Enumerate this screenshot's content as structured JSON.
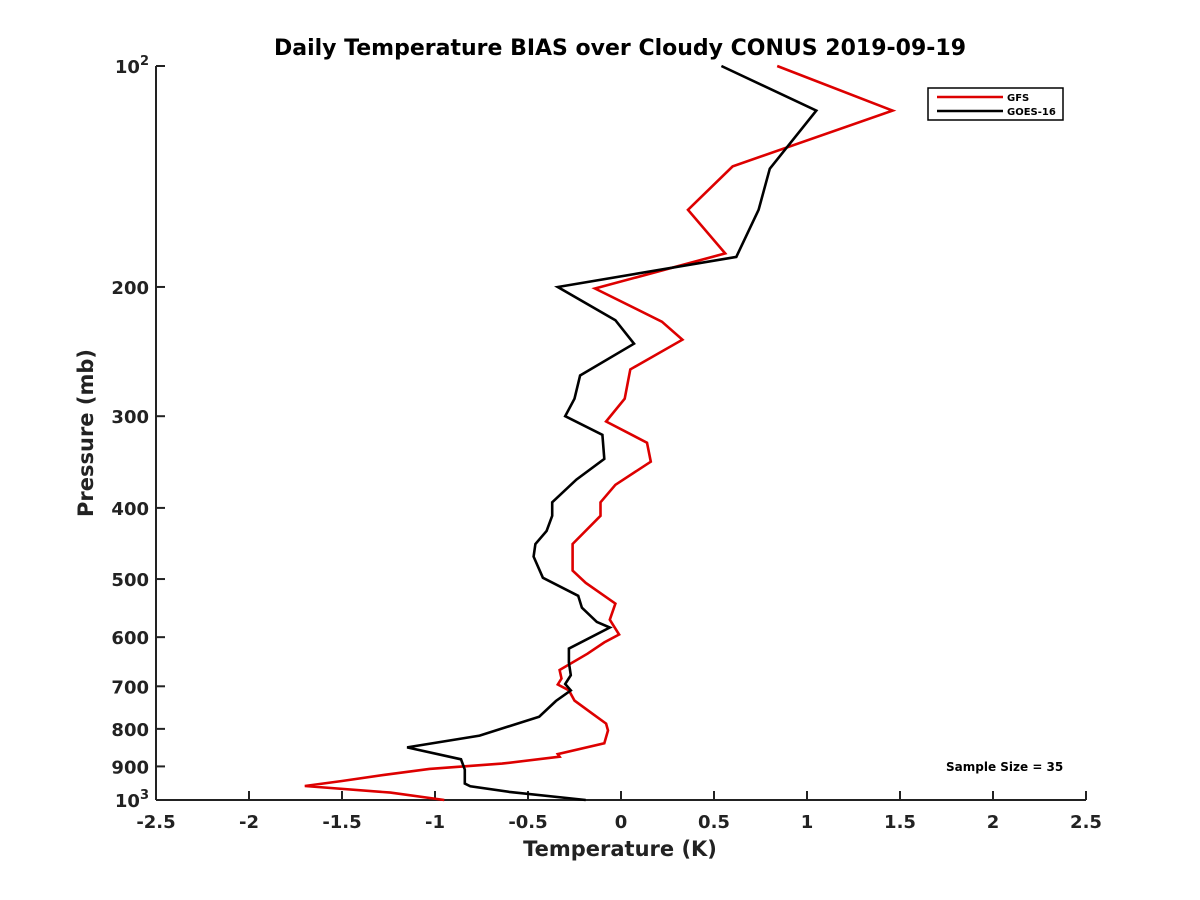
{
  "chart_data": {
    "type": "line",
    "title": "Daily Temperature BIAS over Cloudy CONUS 2019-09-19",
    "xlabel": "Temperature (K)",
    "ylabel": "Pressure (mb)",
    "xlim": [
      -2.5,
      2.5
    ],
    "ylim": [
      100,
      1000
    ],
    "y_scale": "log",
    "y_reversed": true,
    "x_ticks": [
      "-2.5",
      "-2",
      "-1.5",
      "-1",
      "-0.5",
      "0",
      "0.5",
      "1",
      "1.5",
      "2",
      "2.5"
    ],
    "x_tick_values": [
      -2.5,
      -2,
      -1.5,
      -1,
      -0.5,
      0,
      0.5,
      1,
      1.5,
      2,
      2.5
    ],
    "y_ticks": [
      {
        "value": 100,
        "base": "10",
        "exp": "2"
      },
      {
        "value": 200,
        "label": "200"
      },
      {
        "value": 300,
        "label": "300"
      },
      {
        "value": 400,
        "label": "400"
      },
      {
        "value": 500,
        "label": "500"
      },
      {
        "value": 600,
        "label": "600"
      },
      {
        "value": 700,
        "label": "700"
      },
      {
        "value": 800,
        "label": "800"
      },
      {
        "value": 900,
        "label": "900"
      },
      {
        "value": 1000,
        "base": "10",
        "exp": "3"
      }
    ],
    "grid": false,
    "legend_position": "top-right",
    "annotation": "Sample Size = 35",
    "series": [
      {
        "name": "GFS",
        "color": "#dd0000",
        "points": [
          [
            0.84,
            100
          ],
          [
            1.46,
            115
          ],
          [
            0.6,
            137
          ],
          [
            0.36,
            157
          ],
          [
            0.56,
            180
          ],
          [
            -0.14,
            201
          ],
          [
            0.22,
            223
          ],
          [
            0.33,
            236
          ],
          [
            0.05,
            259
          ],
          [
            0.02,
            284
          ],
          [
            -0.08,
            305
          ],
          [
            0.14,
            326
          ],
          [
            0.16,
            346
          ],
          [
            -0.03,
            372
          ],
          [
            -0.11,
            393
          ],
          [
            -0.11,
            410
          ],
          [
            -0.26,
            448
          ],
          [
            -0.26,
            471
          ],
          [
            -0.26,
            487
          ],
          [
            -0.19,
            506
          ],
          [
            -0.03,
            540
          ],
          [
            -0.06,
            568
          ],
          [
            -0.01,
            595
          ],
          [
            -0.09,
            610
          ],
          [
            -0.18,
            632
          ],
          [
            -0.33,
            665
          ],
          [
            -0.32,
            683
          ],
          [
            -0.34,
            696
          ],
          [
            -0.28,
            709
          ],
          [
            -0.25,
            732
          ],
          [
            -0.15,
            764
          ],
          [
            -0.08,
            787
          ],
          [
            -0.07,
            804
          ],
          [
            -0.09,
            837
          ],
          [
            -0.34,
            866
          ],
          [
            -0.33,
            873
          ],
          [
            -0.64,
            892
          ],
          [
            -1.03,
            907
          ],
          [
            -1.27,
            924
          ],
          [
            -1.5,
            942
          ],
          [
            -1.7,
            957
          ],
          [
            -1.24,
            977
          ],
          [
            -0.95,
            1000
          ]
        ]
      },
      {
        "name": "GOES-16",
        "color": "#000000",
        "points": [
          [
            0.54,
            100
          ],
          [
            1.05,
            115
          ],
          [
            0.8,
            138
          ],
          [
            0.74,
            157
          ],
          [
            0.62,
            182
          ],
          [
            -0.34,
            200
          ],
          [
            -0.03,
            222
          ],
          [
            0.07,
            239
          ],
          [
            -0.22,
            264
          ],
          [
            -0.25,
            284
          ],
          [
            -0.3,
            300
          ],
          [
            -0.1,
            318
          ],
          [
            -0.09,
            343
          ],
          [
            -0.24,
            366
          ],
          [
            -0.37,
            393
          ],
          [
            -0.37,
            410
          ],
          [
            -0.4,
            430
          ],
          [
            -0.46,
            448
          ],
          [
            -0.47,
            466
          ],
          [
            -0.42,
            498
          ],
          [
            -0.23,
            527
          ],
          [
            -0.21,
            547
          ],
          [
            -0.13,
            572
          ],
          [
            -0.06,
            582
          ],
          [
            -0.28,
            622
          ],
          [
            -0.28,
            650
          ],
          [
            -0.27,
            676
          ],
          [
            -0.3,
            695
          ],
          [
            -0.27,
            709
          ],
          [
            -0.35,
            733
          ],
          [
            -0.44,
            770
          ],
          [
            -0.76,
            817
          ],
          [
            -1.15,
            848
          ],
          [
            -0.86,
            880
          ],
          [
            -0.84,
            909
          ],
          [
            -0.84,
            935
          ],
          [
            -0.84,
            950
          ],
          [
            -0.81,
            958
          ],
          [
            -0.6,
            975
          ],
          [
            -0.19,
            1000
          ]
        ]
      }
    ]
  }
}
